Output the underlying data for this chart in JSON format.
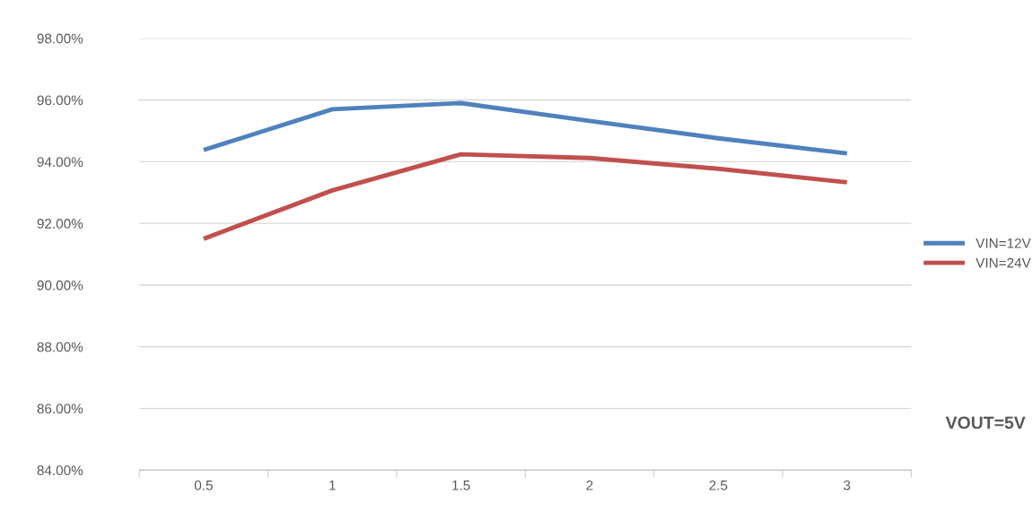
{
  "chart_data": {
    "type": "line",
    "categories": [
      "0.5",
      "1",
      "1.5",
      "2",
      "2.5",
      "3"
    ],
    "series": [
      {
        "name": "VIN=12V",
        "color": "#4f81bd",
        "values": [
          94.38,
          95.7,
          95.9,
          95.32,
          94.76,
          94.27
        ]
      },
      {
        "name": "VIN=24V",
        "color": "#c0504d",
        "values": [
          91.5,
          93.07,
          94.24,
          94.12,
          93.77,
          93.33
        ]
      }
    ],
    "ylim": [
      84,
      98
    ],
    "yticks": [
      {
        "value": 84,
        "label": "84.00%"
      },
      {
        "value": 86,
        "label": "86.00%"
      },
      {
        "value": 88,
        "label": "88.00%"
      },
      {
        "value": 90,
        "label": "90.00%"
      },
      {
        "value": 92,
        "label": "92.00%"
      },
      {
        "value": 94,
        "label": "94.00%"
      },
      {
        "value": 96,
        "label": "96.00%"
      },
      {
        "value": 98,
        "label": "98.00%"
      }
    ],
    "grid": "y",
    "legend": "right",
    "marker": "none",
    "line_style": "solid",
    "annotations": [
      "VOUT=5V"
    ]
  }
}
